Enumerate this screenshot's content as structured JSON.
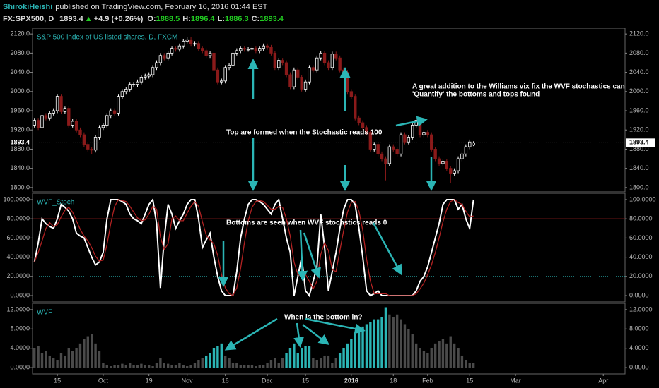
{
  "header": {
    "author": "ShirokiHeishi",
    "published": "published on TradingView.com, February 16, 2016 01:44 EST",
    "symbol": "FX:SPX500, D",
    "arrow": "▲",
    "change": "+4.9 (+0.26%)",
    "o": "O:",
    "h": "H:",
    "l": "L:",
    "c": "C:"
  },
  "chart_data": [
    {
      "type": "candlestick",
      "title": "S&P 500 index of US listed shares, D, FXCM",
      "up_color": "#ffffff",
      "down_color": "#8b1a1a",
      "xlim": [
        -0.5,
        154.7
      ],
      "ylim": [
        1791,
        2132
      ],
      "yticks": [
        {
          "value": 1800,
          "label": "1800.0"
        },
        {
          "value": 1840,
          "label": "1840.0"
        },
        {
          "value": 1880,
          "label": "1880.0"
        },
        {
          "value": 1920,
          "label": "1920.0"
        },
        {
          "value": 1960,
          "label": "1960.0"
        },
        {
          "value": 2000,
          "label": "2000.0"
        },
        {
          "value": 2040,
          "label": "2040.0"
        },
        {
          "value": 2080,
          "label": "2080.0"
        },
        {
          "value": 2120,
          "label": "2120.0"
        }
      ],
      "annotations": [
        "Top are formed when the Stochastic reads 100",
        "A great addition to the Williams vix fix the WVF stochastics can",
        "'Quantify' the bottoms and tops found"
      ],
      "candles": [
        [
          1930,
          1945,
          1925,
          1940
        ],
        [
          1940,
          1945,
          1920,
          1925
        ],
        [
          1925,
          1955,
          1920,
          1950
        ],
        [
          1950,
          1955,
          1940,
          1945
        ],
        [
          1945,
          1960,
          1940,
          1955
        ],
        [
          1955,
          1965,
          1950,
          1960
        ],
        [
          1960,
          1995,
          1955,
          1990
        ],
        [
          1990,
          1995,
          1953,
          1958
        ],
        [
          1958,
          1970,
          1953,
          1965
        ],
        [
          1965,
          1970,
          1925,
          1930
        ],
        [
          1930,
          1943,
          1925,
          1938
        ],
        [
          1938,
          1943,
          1915,
          1920
        ],
        [
          1920,
          1925,
          1905,
          1910
        ],
        [
          1910,
          1915,
          1885,
          1890
        ],
        [
          1890,
          1895,
          1875,
          1880
        ],
        [
          1880,
          1885,
          1870,
          1878
        ],
        [
          1878,
          1910,
          1873,
          1905
        ],
        [
          1905,
          1930,
          1900,
          1925
        ],
        [
          1925,
          1935,
          1920,
          1930
        ],
        [
          1930,
          1955,
          1925,
          1950
        ],
        [
          1950,
          1965,
          1945,
          1960
        ],
        [
          1960,
          1965,
          1950,
          1955
        ],
        [
          1955,
          1995,
          1950,
          1990
        ],
        [
          1990,
          2005,
          1985,
          2000
        ],
        [
          2000,
          2010,
          1995,
          2005
        ],
        [
          2005,
          2020,
          2000,
          2015
        ],
        [
          2015,
          2020,
          2010,
          2015
        ],
        [
          2015,
          2025,
          2010,
          2020
        ],
        [
          2020,
          2035,
          2015,
          2030
        ],
        [
          2030,
          2037,
          2025,
          2032
        ],
        [
          2032,
          2040,
          2027,
          2035
        ],
        [
          2035,
          2055,
          2030,
          2050
        ],
        [
          2050,
          2065,
          2045,
          2060
        ],
        [
          2060,
          2080,
          2055,
          2075
        ],
        [
          2075,
          2080,
          2065,
          2070
        ],
        [
          2070,
          2085,
          2065,
          2080
        ],
        [
          2080,
          2095,
          2075,
          2090
        ],
        [
          2090,
          2095,
          2083,
          2088
        ],
        [
          2088,
          2100,
          2083,
          2095
        ],
        [
          2095,
          2110,
          2090,
          2105
        ],
        [
          2105,
          2113,
          2100,
          2108
        ],
        [
          2108,
          2113,
          2095,
          2100
        ],
        [
          2100,
          2105,
          2095,
          2100
        ],
        [
          2100,
          2105,
          2085,
          2090
        ],
        [
          2090,
          2095,
          2080,
          2085
        ],
        [
          2085,
          2090,
          2070,
          2075
        ],
        [
          2075,
          2085,
          2070,
          2080
        ],
        [
          2080,
          2085,
          2040,
          2045
        ],
        [
          2045,
          2050,
          2015,
          2020
        ],
        [
          2020,
          2027,
          2015,
          2022
        ],
        [
          2022,
          2055,
          2017,
          2050
        ],
        [
          2050,
          2060,
          2045,
          2055
        ],
        [
          2055,
          2085,
          2050,
          2080
        ],
        [
          2080,
          2090,
          2075,
          2085
        ],
        [
          2085,
          2095,
          2080,
          2090
        ],
        [
          2090,
          2095,
          2083,
          2088
        ],
        [
          2088,
          2093,
          2083,
          2088
        ],
        [
          2088,
          2095,
          2083,
          2090
        ],
        [
          2090,
          2095,
          2080,
          2085
        ],
        [
          2085,
          2095,
          2080,
          2090
        ],
        [
          2090,
          2100,
          2085,
          2095
        ],
        [
          2095,
          2100,
          2087,
          2092
        ],
        [
          2092,
          2097,
          2075,
          2080
        ],
        [
          2080,
          2085,
          2045,
          2050
        ],
        [
          2050,
          2070,
          2045,
          2065
        ],
        [
          2065,
          2070,
          2055,
          2060
        ],
        [
          2060,
          2065,
          2030,
          2035
        ],
        [
          2035,
          2040,
          2005,
          2010
        ],
        [
          2010,
          2050,
          2005,
          2045
        ],
        [
          2045,
          2050,
          2025,
          2030
        ],
        [
          2030,
          2035,
          2000,
          2005
        ],
        [
          2005,
          2025,
          2000,
          2020
        ],
        [
          2020,
          2055,
          2015,
          2050
        ],
        [
          2050,
          2055,
          2040,
          2045
        ],
        [
          2045,
          2075,
          2040,
          2070
        ],
        [
          2070,
          2085,
          2065,
          2080
        ],
        [
          2080,
          2085,
          2055,
          2060
        ],
        [
          2060,
          2065,
          2045,
          2050
        ],
        [
          2050,
          2083,
          2045,
          2078
        ],
        [
          2078,
          2083,
          2065,
          2070
        ],
        [
          2070,
          2075,
          2040,
          2045
        ],
        [
          2045,
          2050,
          2035,
          2040
        ],
        [
          2040,
          2045,
          1995,
          2000
        ],
        [
          2000,
          2005,
          1985,
          1990
        ],
        [
          1990,
          1995,
          1940,
          1945
        ],
        [
          1945,
          1950,
          1930,
          1935
        ],
        [
          1935,
          1940,
          1920,
          1925
        ],
        [
          1925,
          1930,
          1910,
          1915
        ],
        [
          1915,
          1920,
          1875,
          1880
        ],
        [
          1880,
          1895,
          1875,
          1890
        ],
        [
          1890,
          1895,
          1865,
          1870
        ],
        [
          1870,
          1875,
          1855,
          1860
        ],
        [
          1860,
          1865,
          1815,
          1850
        ],
        [
          1850,
          1890,
          1845,
          1885
        ],
        [
          1885,
          1890,
          1875,
          1880
        ],
        [
          1880,
          1885,
          1865,
          1870
        ],
        [
          1870,
          1915,
          1865,
          1910
        ],
        [
          1910,
          1915,
          1890,
          1895
        ],
        [
          1895,
          1910,
          1890,
          1905
        ],
        [
          1905,
          1935,
          1900,
          1930
        ],
        [
          1930,
          1945,
          1925,
          1940
        ],
        [
          1940,
          1945,
          1905,
          1910
        ],
        [
          1910,
          1920,
          1905,
          1915
        ],
        [
          1915,
          1920,
          1905,
          1910
        ],
        [
          1910,
          1915,
          1875,
          1880
        ],
        [
          1880,
          1885,
          1855,
          1860
        ],
        [
          1860,
          1865,
          1845,
          1850
        ],
        [
          1850,
          1860,
          1845,
          1855
        ],
        [
          1855,
          1860,
          1835,
          1840
        ],
        [
          1840,
          1845,
          1810,
          1830
        ],
        [
          1830,
          1840,
          1825,
          1835
        ],
        [
          1835,
          1865,
          1830,
          1860
        ],
        [
          1860,
          1875,
          1855,
          1870
        ],
        [
          1870,
          1890,
          1865,
          1885
        ],
        [
          1885,
          1900,
          1880,
          1895
        ],
        [
          1888.5,
          1896.4,
          1886.3,
          1893.4
        ]
      ]
    },
    {
      "type": "line",
      "title": "WVF_Stoch",
      "xlim": [
        -0.5,
        154.7
      ],
      "ylim": [
        -6.6,
        106.6
      ],
      "yticks": [
        {
          "value": 0,
          "label": "0.0000"
        },
        {
          "value": 20,
          "label": "20.0000"
        },
        {
          "value": 40,
          "label": "40.0000"
        },
        {
          "value": 60,
          "label": "60.0000"
        },
        {
          "value": 80,
          "label": "80.0000"
        },
        {
          "value": 100,
          "label": "100.0000"
        }
      ],
      "bands": [
        {
          "value": 80,
          "color": "#8b1a1a"
        },
        {
          "value": 20,
          "color": "#2bb5b5"
        }
      ],
      "annotations": [
        "Bottoms are seen when WVF stochstics reads 0"
      ],
      "series": [
        {
          "color": "#ffffff",
          "values": [
            35,
            55,
            80,
            75,
            72,
            70,
            80,
            95,
            92,
            88,
            80,
            65,
            62,
            60,
            50,
            40,
            32,
            35,
            45,
            80,
            100,
            100,
            100,
            98,
            95,
            85,
            80,
            78,
            75,
            85,
            95,
            100,
            75,
            8,
            60,
            95,
            85,
            70,
            78,
            85,
            95,
            100,
            100,
            80,
            50,
            58,
            65,
            40,
            20,
            5,
            0,
            0,
            0,
            25,
            60,
            80,
            95,
            100,
            100,
            98,
            95,
            90,
            85,
            95,
            100,
            80,
            60,
            45,
            0,
            20,
            40,
            5,
            0,
            15,
            30,
            85,
            50,
            5,
            25,
            45,
            70,
            90,
            100,
            100,
            95,
            70,
            40,
            5,
            0,
            2,
            5,
            0,
            0,
            0,
            0,
            0,
            0,
            0,
            0,
            0,
            5,
            15,
            20,
            30,
            45,
            60,
            75,
            95,
            100,
            100,
            100,
            90,
            95,
            80,
            70,
            100
          ]
        },
        {
          "color": "#b22222",
          "values": [
            35,
            45,
            57,
            70,
            76,
            72,
            74,
            82,
            89,
            92,
            87,
            78,
            69,
            62,
            57,
            50,
            41,
            36,
            37,
            53,
            75,
            93,
            100,
            99,
            98,
            93,
            87,
            81,
            78,
            79,
            85,
            93,
            90,
            61,
            48,
            54,
            80,
            83,
            78,
            78,
            86,
            93,
            98,
            93,
            77,
            63,
            58,
            54,
            42,
            22,
            8,
            2,
            0,
            8,
            28,
            55,
            78,
            92,
            98,
            99,
            98,
            94,
            90,
            90,
            93,
            92,
            80,
            62,
            35,
            22,
            20,
            22,
            15,
            7,
            15,
            43,
            55,
            47,
            27,
            25,
            47,
            68,
            87,
            97,
            98,
            88,
            68,
            38,
            15,
            2,
            2,
            2,
            2,
            0,
            0,
            0,
            0,
            0,
            0,
            0,
            2,
            7,
            13,
            22,
            32,
            45,
            60,
            77,
            90,
            98,
            100,
            97,
            95,
            88,
            82,
            83
          ]
        }
      ]
    },
    {
      "type": "bar",
      "title": "WVF",
      "color": "#4a4a4a",
      "highlight_color": "#2bb5b5",
      "highlight_ranges": [
        [
          45,
          49
        ],
        [
          66,
          72
        ],
        [
          80,
          92
        ]
      ],
      "xlim": [
        -0.5,
        154.7
      ],
      "ylim": [
        -1.3,
        13.3
      ],
      "yticks": [
        {
          "value": 0,
          "label": "0.0000"
        },
        {
          "value": 4,
          "label": "4.0000"
        },
        {
          "value": 8,
          "label": "8.0000"
        },
        {
          "value": 12,
          "label": "12.0000"
        }
      ],
      "xticks": [
        {
          "value": 6,
          "label": "15"
        },
        {
          "value": 18,
          "label": "Oct"
        },
        {
          "value": 30,
          "label": "19"
        },
        {
          "value": 40,
          "label": "Nov"
        },
        {
          "value": 50,
          "label": "16"
        },
        {
          "value": 61,
          "label": "Dec"
        },
        {
          "value": 71,
          "label": "15"
        },
        {
          "value": 83,
          "label": "2016"
        },
        {
          "value": 94,
          "label": "18"
        },
        {
          "value": 103,
          "label": "Feb"
        },
        {
          "value": 114,
          "label": "15"
        },
        {
          "value": 126,
          "label": "Mar"
        },
        {
          "value": 149,
          "label": "Apr"
        }
      ],
      "annotations": [
        "When is the bottom in?"
      ],
      "values": [
        4,
        4.5,
        3,
        3.5,
        2.5,
        2,
        1.5,
        3,
        2.5,
        4,
        3.5,
        4,
        5,
        6,
        6.5,
        7,
        5,
        3.5,
        1,
        0.5,
        0.3,
        0.5,
        0.5,
        0.8,
        0.5,
        1,
        0.5,
        0.5,
        0.8,
        0.5,
        0.5,
        0.3,
        1,
        2,
        1,
        0.8,
        0.5,
        0.5,
        1,
        0.5,
        0.3,
        0.5,
        1,
        1.5,
        2,
        2.5,
        3,
        4,
        4.5,
        5,
        2.5,
        2,
        1,
        1,
        0.5,
        0.5,
        0.5,
        0.5,
        0.3,
        0.5,
        0.5,
        1,
        1.5,
        2,
        1,
        2,
        3,
        4,
        5,
        3,
        4,
        4.5,
        4.5,
        2,
        1.5,
        2,
        2.5,
        2.5,
        1,
        2,
        3,
        4,
        5,
        6,
        7,
        8,
        8.5,
        9,
        9.5,
        10,
        10,
        10.5,
        12.5,
        11,
        10.5,
        11,
        10,
        9,
        8,
        7,
        5,
        4,
        3.5,
        3,
        4,
        5,
        5.5,
        6,
        5,
        6.5,
        5,
        4,
        2.5,
        1.5,
        1,
        1
      ]
    }
  ]
}
